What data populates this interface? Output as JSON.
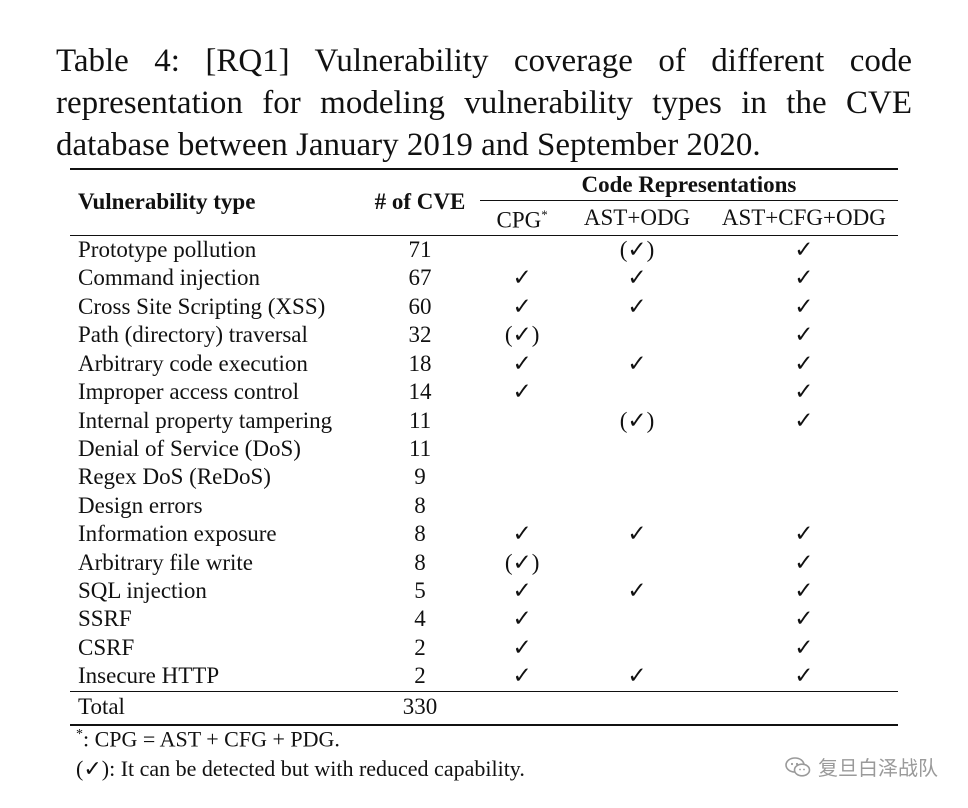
{
  "caption": "Table 4: [RQ1] Vulnerability coverage of different code representation for modeling vulnerability types in the CVE database between January 2019 and September 2020.",
  "table": {
    "header": {
      "col_type": "Vulnerability type",
      "col_count": "# of CVE",
      "group": "Code Representations",
      "sub_cpg": "CPG",
      "sub_cpg_mark": "*",
      "sub_ast": "AST+ODG",
      "sub_full": "AST+CFG+ODG"
    },
    "rows": [
      {
        "type": "Prototype pollution",
        "count": "71",
        "cpg": "",
        "ast": "(✓)",
        "full": "✓"
      },
      {
        "type": "Command injection",
        "count": "67",
        "cpg": "✓",
        "ast": "✓",
        "full": "✓"
      },
      {
        "type": "Cross Site Scripting (XSS)",
        "count": "60",
        "cpg": "✓",
        "ast": "✓",
        "full": "✓"
      },
      {
        "type": "Path (directory) traversal",
        "count": "32",
        "cpg": "(✓)",
        "ast": "",
        "full": "✓"
      },
      {
        "type": "Arbitrary code execution",
        "count": "18",
        "cpg": "✓",
        "ast": "✓",
        "full": "✓"
      },
      {
        "type": "Improper access control",
        "count": "14",
        "cpg": "✓",
        "ast": "",
        "full": "✓"
      },
      {
        "type": "Internal property tampering",
        "count": "11",
        "cpg": "",
        "ast": "(✓)",
        "full": "✓"
      },
      {
        "type": "Denial of Service (DoS)",
        "count": "11",
        "cpg": "",
        "ast": "",
        "full": ""
      },
      {
        "type": "Regex DoS (ReDoS)",
        "count": "9",
        "cpg": "",
        "ast": "",
        "full": ""
      },
      {
        "type": "Design errors",
        "count": "8",
        "cpg": "",
        "ast": "",
        "full": ""
      },
      {
        "type": "Information exposure",
        "count": "8",
        "cpg": "✓",
        "ast": "✓",
        "full": "✓"
      },
      {
        "type": "Arbitrary file write",
        "count": "8",
        "cpg": "(✓)",
        "ast": "",
        "full": "✓"
      },
      {
        "type": "SQL injection",
        "count": "5",
        "cpg": "✓",
        "ast": "✓",
        "full": "✓"
      },
      {
        "type": "SSRF",
        "count": "4",
        "cpg": "✓",
        "ast": "",
        "full": "✓"
      },
      {
        "type": "CSRF",
        "count": "2",
        "cpg": "✓",
        "ast": "",
        "full": "✓"
      },
      {
        "type": "Insecure HTTP",
        "count": "2",
        "cpg": "✓",
        "ast": "✓",
        "full": "✓"
      }
    ],
    "total": {
      "label": "Total",
      "count": "330"
    }
  },
  "footnotes": {
    "note1_mark": "*",
    "note1": ": CPG = AST + CFG + PDG.",
    "note2": "(✓): It can be detected but with reduced capability."
  },
  "watermark": {
    "text": "复旦白泽战队",
    "icon": "wechat-icon"
  }
}
